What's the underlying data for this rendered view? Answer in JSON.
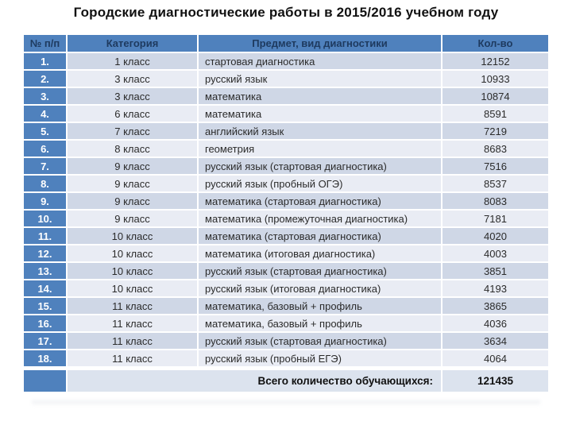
{
  "title": "Городские диагностические работы в 2015/2016 учебном году",
  "colors": {
    "header_bg": "#4f81bd",
    "header_text": "#1e3a5f",
    "band_odd": "#cfd7e6",
    "band_even": "#e9ecf4",
    "footer_bg": "#dce3ee",
    "first_col_text": "#ffffff"
  },
  "table": {
    "columns": [
      "№ п/п",
      "Категория",
      "Предмет, вид диагностики",
      "Кол-во"
    ],
    "rows": [
      {
        "num": "1.",
        "category": "1 класс",
        "subject": "стартовая диагностика",
        "count": "12152"
      },
      {
        "num": "2.",
        "category": "3 класс",
        "subject": "русский язык",
        "count": "10933"
      },
      {
        "num": "3.",
        "category": "3 класс",
        "subject": "математика",
        "count": "10874"
      },
      {
        "num": "4.",
        "category": "6 класс",
        "subject": "математика",
        "count": "8591"
      },
      {
        "num": "5.",
        "category": "7 класс",
        "subject": "английский язык",
        "count": "7219"
      },
      {
        "num": "6.",
        "category": "8 класс",
        "subject": "геометрия",
        "count": "8683"
      },
      {
        "num": "7.",
        "category": "9 класс",
        "subject": "русский язык (стартовая диагностика)",
        "count": "7516"
      },
      {
        "num": "8.",
        "category": "9 класс",
        "subject": "русский язык (пробный ОГЭ)",
        "count": "8537"
      },
      {
        "num": "9.",
        "category": "9 класс",
        "subject": "математика (стартовая диагностика)",
        "count": "8083"
      },
      {
        "num": "10.",
        "category": "9 класс",
        "subject": "математика (промежуточная диагностика)",
        "count": "7181"
      },
      {
        "num": "11.",
        "category": "10 класс",
        "subject": "математика (стартовая диагностика)",
        "count": "4020"
      },
      {
        "num": "12.",
        "category": "10 класс",
        "subject": "математика (итоговая диагностика)",
        "count": "4003"
      },
      {
        "num": "13.",
        "category": "10 класс",
        "subject": "русский язык (стартовая диагностика)",
        "count": "3851"
      },
      {
        "num": "14.",
        "category": "10 класс",
        "subject": "русский язык (итоговая диагностика)",
        "count": "4193"
      },
      {
        "num": "15.",
        "category": "11 класс",
        "subject": "математика, базовый + профиль",
        "count": "3865"
      },
      {
        "num": "16.",
        "category": "11 класс",
        "subject": "математика, базовый + профиль",
        "count": "4036"
      },
      {
        "num": "17.",
        "category": "11 класс",
        "subject": "русский язык (стартовая диагностика)",
        "count": "3634"
      },
      {
        "num": "18.",
        "category": "11 класс",
        "subject": "русский язык (пробный ЕГЭ)",
        "count": "4064"
      }
    ],
    "footer": {
      "label": "Всего количество обучающихся:",
      "total": "121435"
    }
  }
}
